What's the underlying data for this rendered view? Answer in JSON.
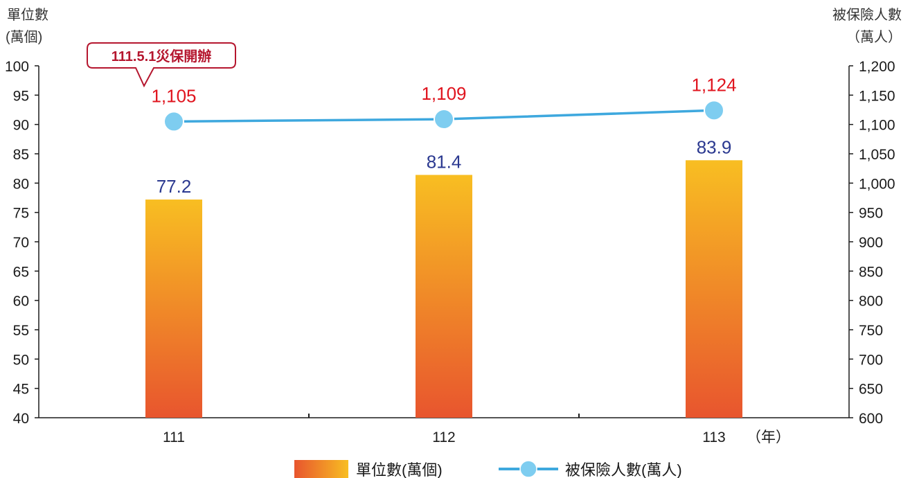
{
  "chart_data": {
    "type": "bar",
    "categories": [
      "111",
      "112",
      "113"
    ],
    "x_unit": "（年）",
    "series": [
      {
        "name": "單位數(萬個)",
        "type": "bar",
        "axis": "left",
        "values": [
          77.2,
          81.4,
          83.9
        ],
        "display_labels": [
          "77.2",
          "81.4",
          "83.9"
        ],
        "color_top": "#f8be22",
        "color_bottom": "#e8552e",
        "label_color": "#2b3990"
      },
      {
        "name": "被保險人數(萬人)",
        "type": "line",
        "axis": "right",
        "values": [
          1105,
          1109,
          1124
        ],
        "display_labels": [
          "1,105",
          "1,109",
          "1,124"
        ],
        "color": "#3ea8de",
        "marker_color": "#7ecdf0",
        "label_color": "#e0141e"
      }
    ],
    "y_left": {
      "title_line1": "單位數",
      "title_line2": "(萬個)",
      "ylim": [
        40,
        100
      ],
      "ticks": [
        "40",
        "45",
        "50",
        "55",
        "60",
        "65",
        "70",
        "75",
        "80",
        "85",
        "90",
        "95",
        "100"
      ]
    },
    "y_right": {
      "title_line1": "被保險人數",
      "title_line2": "（萬人）",
      "ylim": [
        600,
        1200
      ],
      "ticks": [
        "600",
        "650",
        "700",
        "750",
        "800",
        "850",
        "900",
        "950",
        "1,000",
        "1,050",
        "1,100",
        "1,150",
        "1,200"
      ]
    },
    "annotation": {
      "text": "111.5.1災保開辦",
      "color": "#b5162e"
    },
    "grid": false,
    "legend_position": "bottom-center"
  }
}
